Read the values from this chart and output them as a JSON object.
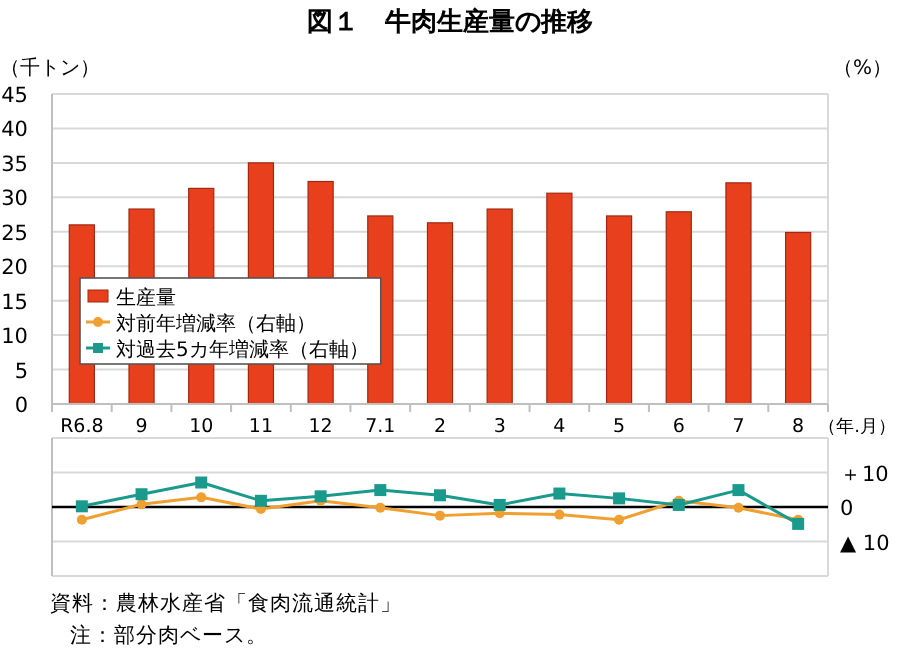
{
  "chart_data": [
    {
      "type": "bar",
      "title": "図１　牛肉生産量の推移",
      "ylabel": "（千トン）",
      "y2label": "（%）",
      "xlabel": "（年.月）",
      "categories": [
        "R6.8",
        "9",
        "10",
        "11",
        "12",
        "7.1",
        "2",
        "3",
        "4",
        "5",
        "6",
        "7",
        "8"
      ],
      "series": [
        {
          "name": "生産量",
          "color": "#e8401c",
          "values": [
            26,
            28.3,
            31.3,
            35,
            32.3,
            27.3,
            26.3,
            28.3,
            30.6,
            27.3,
            27.9,
            32.1,
            24.9
          ]
        }
      ],
      "ylim": [
        0,
        45
      ],
      "yticks": [
        0,
        5,
        10,
        15,
        20,
        25,
        30,
        35,
        40,
        45
      ],
      "grid": "y",
      "legend": "bottom left",
      "annotations": [
        "資料：農林水産省「食肉流通統計」",
        "注：部分肉ベース。"
      ]
    },
    {
      "type": "line",
      "categories": [
        null,
        null,
        null,
        null,
        null,
        null,
        null,
        null,
        null,
        null,
        null,
        null,
        null
      ],
      "series": [
        {
          "name": "対前年増減率（右軸）",
          "color": "#f0a030",
          "marker": "circle",
          "values": [
            -3.7,
            0.8,
            2.8,
            -0.6,
            1.8,
            -0.2,
            -2.5,
            -1.8,
            -2.2,
            -3.7,
            1.8,
            -0.2,
            -3.7
          ]
        },
        {
          "name": "対過去5カ年増減率（右軸）",
          "color": "#1a9a8c",
          "marker": "square",
          "values": [
            0.2,
            3.7,
            7.1,
            1.8,
            3.1,
            4.9,
            3.4,
            0.6,
            3.9,
            2.5,
            0.6,
            4.9,
            -4.9
          ]
        }
      ],
      "ylim": [
        -20,
        20
      ],
      "yticks": [
        {
          "value": -20,
          "label": null
        },
        {
          "value": -10,
          "label": "▲ 10"
        },
        0,
        {
          "value": 10,
          "label": "＋10"
        },
        {
          "value": 20,
          "label": null
        }
      ],
      "grid": "y",
      "tick_labels": "y",
      "legend": "top left",
      "ref_lines": [
        {
          "axis": "y",
          "value": 0,
          "color": "#000000"
        }
      ]
    }
  ]
}
